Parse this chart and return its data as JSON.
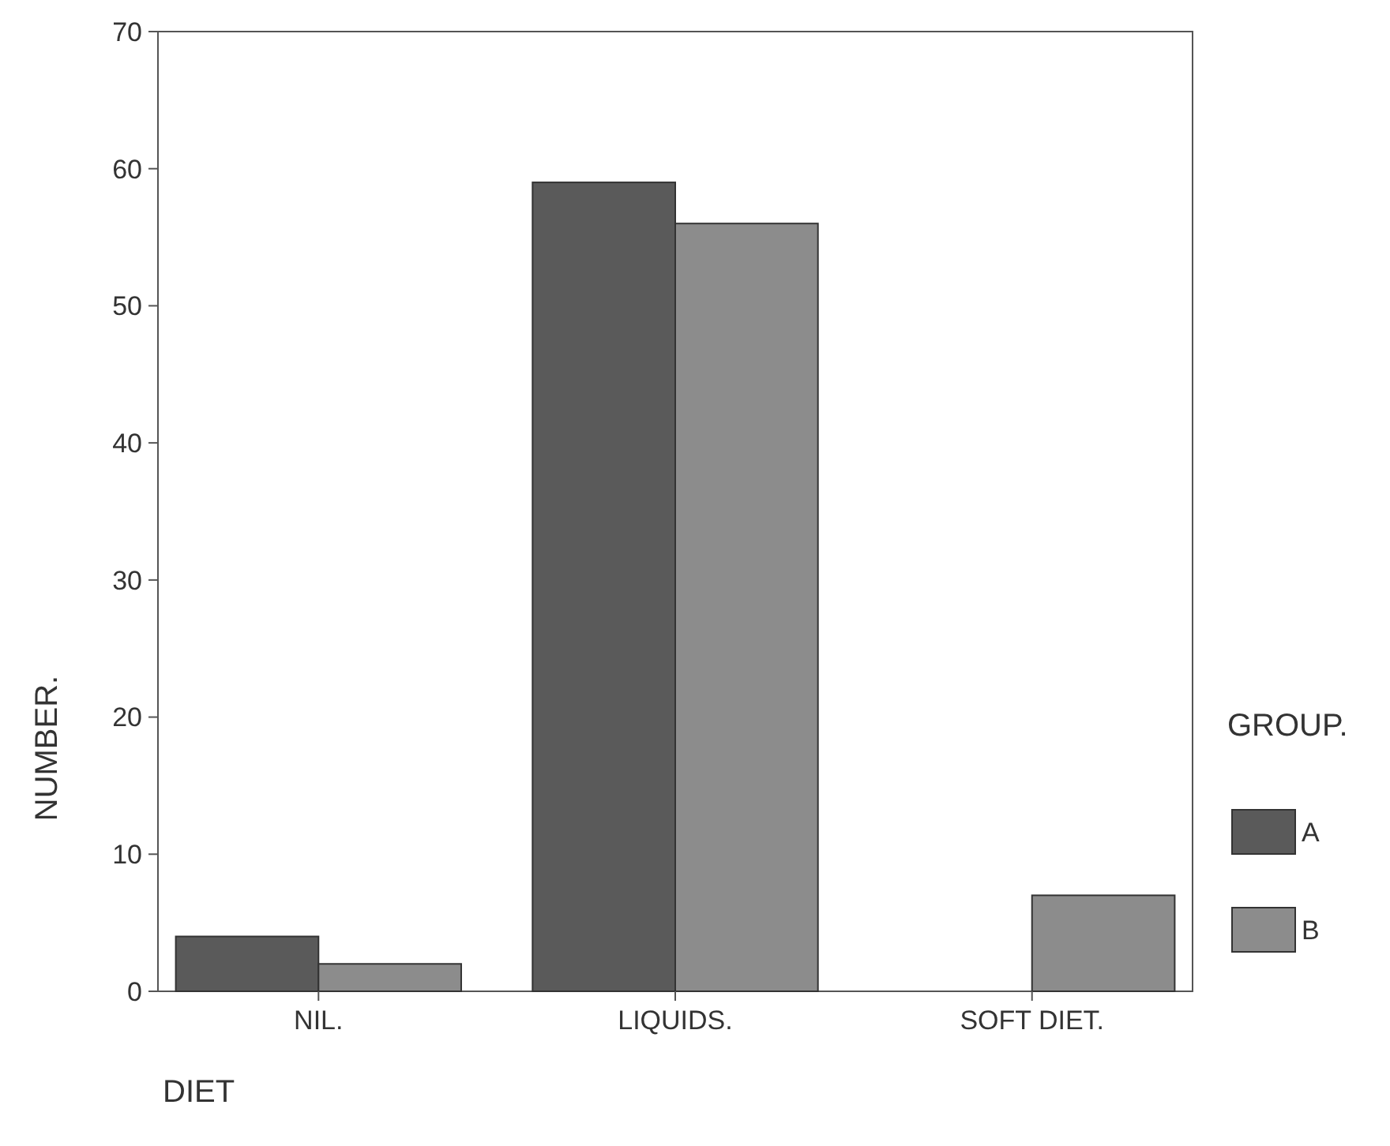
{
  "chart_data": {
    "type": "bar",
    "xlabel": "DIET",
    "ylabel": "NUMBER.",
    "legend_title": "GROUP.",
    "categories": [
      "NIL.",
      "LIQUIDS.",
      "SOFT DIET."
    ],
    "series": [
      {
        "name": "A",
        "color": "#5a5a5a",
        "values": [
          4,
          59,
          0
        ]
      },
      {
        "name": "B",
        "color": "#8c8c8c",
        "values": [
          2,
          56,
          7
        ]
      }
    ],
    "ylim": [
      0,
      70
    ],
    "yticks": [
      0,
      10,
      20,
      30,
      40,
      50,
      60,
      70
    ],
    "grid": false,
    "legend": "right"
  }
}
